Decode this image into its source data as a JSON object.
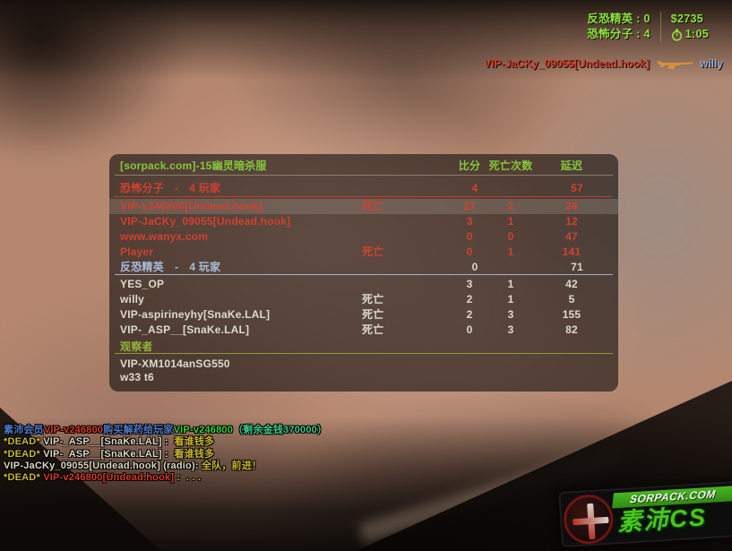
{
  "colors": {
    "hud_green": "#8fe23c",
    "header_green": "#84c838",
    "t_red": "#cf4132",
    "ct_blue": "#a6bedd",
    "white_row": "#dcdad0",
    "spec_green": "#93b238",
    "chat_blue": "#4d78c8",
    "chat_red": "#d93a28",
    "chat_green": "#3ad23a",
    "chat_teal": "#3cc88c",
    "chat_yellow": "#c9b92e",
    "chat_white": "#ded8c4",
    "kill_red": "#cf3b28",
    "victim_blue": "#93aed2",
    "weapon_orange": "#d8903c",
    "logo_green": "#46c81e"
  },
  "hud": {
    "ct_label": "反恐精英 : 0",
    "t_label": "恐怖分子 : 4",
    "money": "$2735",
    "timer": "1:05"
  },
  "killfeed": {
    "killer": "VIP-JaCKy_09055[Undead.hook]",
    "weapon": "ak47",
    "victim": "willy"
  },
  "scoreboard": {
    "title": "[sorpack.com]-15幽灵暗杀服",
    "columns": {
      "score": "比分",
      "deaths": "死亡次数",
      "latency": "延迟"
    },
    "dead_label": "死亡",
    "team_sep": "-",
    "players_suffix": "玩家",
    "teams": [
      {
        "name": "恐怖分子",
        "count": "4",
        "score": "4",
        "latency": "57",
        "color": "#cf4132",
        "value_color": "#cf4132",
        "class": "th-t",
        "players": [
          {
            "name": "VIP-v246800[Undead.hook]",
            "dead": true,
            "score": "17",
            "deaths": "2",
            "latency": "28",
            "highlight": true
          },
          {
            "name": "VIP-JaCKy_09055[Undead.hook]",
            "dead": false,
            "score": "3",
            "deaths": "1",
            "latency": "12",
            "highlight": false
          },
          {
            "name": "www.wanyx.com",
            "dead": false,
            "score": "0",
            "deaths": "0",
            "latency": "47",
            "highlight": false
          },
          {
            "name": "Player",
            "dead": true,
            "score": "0",
            "deaths": "1",
            "latency": "141",
            "highlight": false
          }
        ]
      },
      {
        "name": "反恐精英",
        "count": "4",
        "score": "0",
        "latency": "71",
        "color": "#a6bedd",
        "value_color": "#d6d6cc",
        "class": "th-ct",
        "players": [
          {
            "name": "YES_OP",
            "dead": false,
            "score": "3",
            "deaths": "1",
            "latency": "42",
            "highlight": false
          },
          {
            "name": "willy",
            "dead": true,
            "score": "2",
            "deaths": "1",
            "latency": "5",
            "highlight": false
          },
          {
            "name": "VIP-aspirineyhy[SnaKe.LAL]",
            "dead": true,
            "score": "2",
            "deaths": "3",
            "latency": "155",
            "highlight": false
          },
          {
            "name": "VIP-_ASP__[SnaKe.LAL]",
            "dead": true,
            "score": "0",
            "deaths": "3",
            "latency": "82",
            "highlight": false
          }
        ]
      }
    ],
    "player_color_t": "#cf4132",
    "player_color_ct": "#dcdad0",
    "spectators": {
      "label": "观察者",
      "names": [
        "VIP-XM1014anSG550",
        "w33 t6"
      ]
    }
  },
  "chat": {
    "lines": [
      [
        {
          "t": "素沛会员",
          "c": "chat_blue"
        },
        {
          "t": "VIP-v246800",
          "c": "chat_red"
        },
        {
          "t": "购买解药给玩家",
          "c": "chat_blue"
        },
        {
          "t": "VIP-v246800",
          "c": "chat_green"
        },
        {
          "t": "（剩余金钱370000）",
          "c": "chat_teal"
        }
      ],
      [
        {
          "t": "*DEAD* ",
          "c": "chat_yellow"
        },
        {
          "t": "VIP-_ASP__[SnaKe.LAL] :  ",
          "c": "chat_white"
        },
        {
          "t": "看谁钱多",
          "c": "chat_yellow"
        }
      ],
      [
        {
          "t": "*DEAD* ",
          "c": "chat_yellow"
        },
        {
          "t": "VIP-_ASP__[SnaKe.LAL] :  ",
          "c": "chat_white"
        },
        {
          "t": "看谁钱多",
          "c": "chat_yellow"
        }
      ],
      [
        {
          "t": "VIP-JaCKy_09055[Undead.hook] (radio): ",
          "c": "chat_white"
        },
        {
          "t": "全队，前进！",
          "c": "chat_yellow"
        }
      ],
      [
        {
          "t": "*DEAD* ",
          "c": "chat_yellow"
        },
        {
          "t": "VIP-v246800[Undead.hook]",
          "c": "chat_red"
        },
        {
          "t": " :  . . .",
          "c": "chat_yellow"
        }
      ]
    ]
  },
  "logo": {
    "site": "SORPACK.COM",
    "brand": "素沛CS"
  }
}
